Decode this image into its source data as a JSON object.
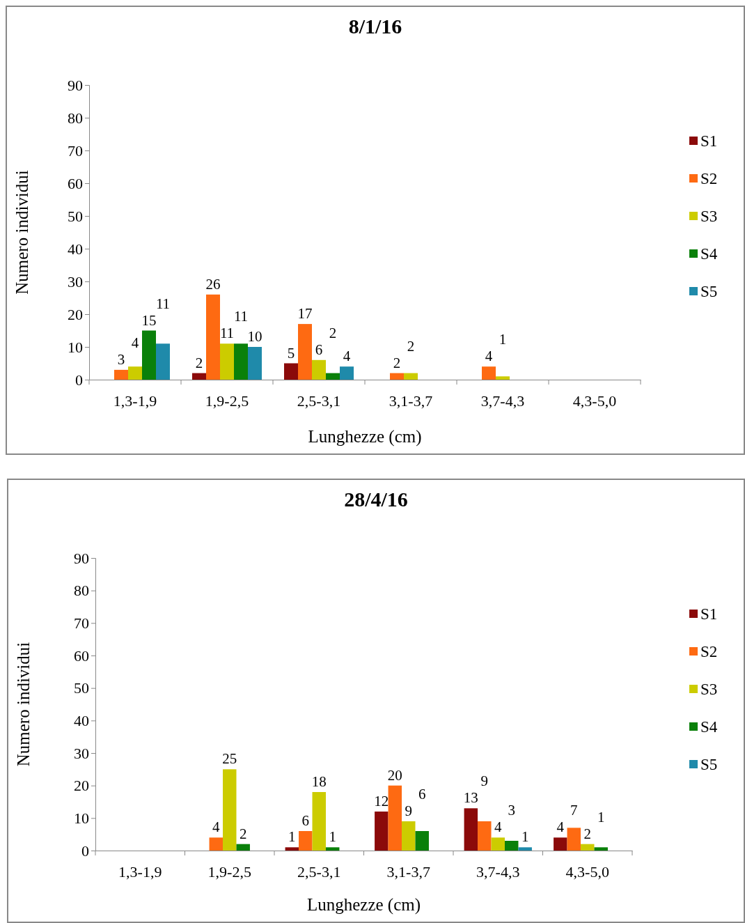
{
  "chart_data": [
    {
      "type": "bar",
      "title": "8/1/16",
      "xlabel": "Lunghezze (cm)",
      "ylabel": "Numero individui",
      "categories": [
        "1,3-1,9",
        "1,9-2,5",
        "2,5-3,1",
        "3,1-3,7",
        "3,7-4,3",
        "4,3-5,0"
      ],
      "series": [
        {
          "name": "S1",
          "color": "#8b0a0a",
          "values": [
            null,
            2,
            5,
            null,
            null,
            null
          ]
        },
        {
          "name": "S2",
          "color": "#fe6a12",
          "values": [
            3,
            26,
            17,
            2,
            4,
            null
          ]
        },
        {
          "name": "S3",
          "color": "#cccc00",
          "values": [
            4,
            11,
            6,
            2,
            1,
            null
          ]
        },
        {
          "name": "S4",
          "color": "#0a800a",
          "values": [
            15,
            11,
            2,
            null,
            null,
            null
          ]
        },
        {
          "name": "S5",
          "color": "#1f8aaa",
          "values": [
            11,
            10,
            4,
            null,
            null,
            null
          ]
        }
      ],
      "ylim": [
        0,
        90
      ],
      "yticks": [
        0,
        10,
        20,
        30,
        40,
        50,
        60,
        70,
        80,
        90
      ],
      "grid": false,
      "legend": "right",
      "data_labels": true
    },
    {
      "type": "bar",
      "title": "28/4/16",
      "xlabel": "Lunghezze (cm)",
      "ylabel": "Numero individui",
      "categories": [
        "1,3-1,9",
        "1,9-2,5",
        "2,5-3,1",
        "3,1-3,7",
        "3,7-4,3",
        "4,3-5,0"
      ],
      "series": [
        {
          "name": "S1",
          "color": "#8b0a0a",
          "values": [
            null,
            null,
            1,
            12,
            13,
            4
          ]
        },
        {
          "name": "S2",
          "color": "#fe6a12",
          "values": [
            null,
            4,
            6,
            20,
            9,
            7
          ]
        },
        {
          "name": "S3",
          "color": "#cccc00",
          "values": [
            null,
            25,
            18,
            9,
            4,
            2
          ]
        },
        {
          "name": "S4",
          "color": "#0a800a",
          "values": [
            null,
            2,
            1,
            6,
            3,
            1
          ]
        },
        {
          "name": "S5",
          "color": "#1f8aaa",
          "values": [
            null,
            null,
            null,
            null,
            1,
            null
          ]
        }
      ],
      "ylim": [
        0,
        90
      ],
      "yticks": [
        0,
        10,
        20,
        30,
        40,
        50,
        60,
        70,
        80,
        90
      ],
      "grid": false,
      "legend": "right",
      "data_labels": true
    }
  ]
}
